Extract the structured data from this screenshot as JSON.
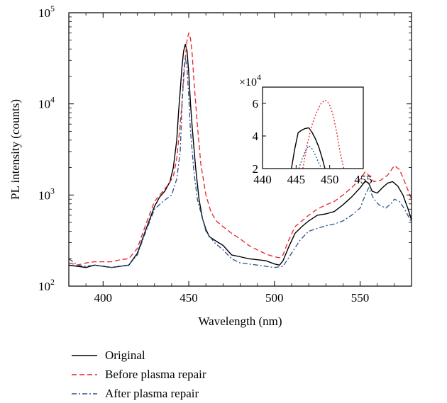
{
  "chart_data": [
    {
      "type": "line",
      "title": "",
      "xlabel": "Wavelength (nm)",
      "ylabel": "PL intensity (counts)",
      "xlim": [
        380,
        580
      ],
      "ylim": [
        100,
        100000
      ],
      "yscale": "log",
      "grid": false,
      "legend_position": "bottom-left, below plot",
      "xticks": [
        400,
        450,
        500,
        550
      ],
      "xtick_labels": [
        "400",
        "450",
        "500",
        "550"
      ],
      "yticks": [
        100,
        1000,
        10000,
        100000
      ],
      "ytick_labels": [
        {
          "base": "10",
          "exp": "2"
        },
        {
          "base": "10",
          "exp": "3"
        },
        {
          "base": "10",
          "exp": "4"
        },
        {
          "base": "10",
          "exp": "5"
        }
      ],
      "series": [
        {
          "name": "Original",
          "color": "#000000",
          "style": "solid",
          "x": [
            380,
            385,
            390,
            395,
            400,
            405,
            410,
            415,
            420,
            425,
            430,
            433,
            436,
            439,
            441,
            443,
            444,
            445,
            446,
            447,
            448,
            449,
            450,
            451,
            452,
            454,
            456,
            458,
            460,
            462,
            465,
            470,
            475,
            480,
            485,
            490,
            495,
            500,
            503,
            505,
            508,
            512,
            516,
            520,
            525,
            530,
            535,
            540,
            545,
            550,
            553,
            555,
            557,
            560,
            563,
            566,
            569,
            572,
            575,
            578,
            580
          ],
          "y": [
            170,
            165,
            160,
            170,
            165,
            160,
            165,
            170,
            230,
            420,
            750,
            950,
            1100,
            1400,
            2000,
            4000,
            8000,
            14000,
            25000,
            38000,
            45000,
            38000,
            22000,
            10000,
            5500,
            2000,
            900,
            550,
            420,
            350,
            320,
            280,
            220,
            210,
            200,
            195,
            190,
            175,
            170,
            190,
            260,
            380,
            450,
            520,
            600,
            620,
            660,
            780,
            950,
            1200,
            1420,
            1350,
            1100,
            1050,
            1200,
            1350,
            1400,
            1250,
            1000,
            700,
            530
          ]
        },
        {
          "name": "Before plasma repair",
          "color": "#e8202a",
          "style": "dashed",
          "x": [
            380,
            385,
            390,
            395,
            400,
            405,
            410,
            415,
            420,
            425,
            430,
            434,
            438,
            441,
            443,
            445,
            446,
            447,
            448,
            449,
            450,
            451,
            452,
            453,
            455,
            457,
            460,
            463,
            466,
            470,
            475,
            480,
            485,
            490,
            495,
            500,
            503,
            505,
            508,
            512,
            516,
            520,
            525,
            530,
            535,
            540,
            545,
            550,
            553,
            555,
            558,
            562,
            566,
            570,
            573,
            576,
            580
          ],
          "y": [
            180,
            170,
            180,
            185,
            185,
            185,
            195,
            200,
            260,
            480,
            850,
            1050,
            1300,
            1600,
            2500,
            6000,
            10000,
            18000,
            32000,
            50000,
            60000,
            52000,
            35000,
            18000,
            6000,
            2200,
            1000,
            650,
            520,
            450,
            380,
            330,
            280,
            250,
            225,
            210,
            205,
            220,
            310,
            450,
            520,
            600,
            700,
            780,
            850,
            1000,
            1200,
            1500,
            1800,
            1650,
            1400,
            1450,
            1650,
            2100,
            1900,
            1400,
            900
          ]
        },
        {
          "name": "After plasma repair",
          "color": "#2a4f8f",
          "style": "dashdot",
          "x": [
            380,
            385,
            390,
            395,
            400,
            405,
            410,
            415,
            420,
            425,
            430,
            435,
            440,
            443,
            445,
            446,
            447,
            448,
            449,
            450,
            451,
            453,
            455,
            458,
            460,
            465,
            470,
            475,
            480,
            485,
            490,
            495,
            500,
            505,
            510,
            515,
            520,
            525,
            530,
            535,
            540,
            545,
            550,
            553,
            555,
            558,
            561,
            565,
            568,
            570,
            573,
            576,
            580
          ],
          "y": [
            200,
            170,
            165,
            170,
            165,
            160,
            165,
            170,
            220,
            400,
            700,
            850,
            1000,
            1500,
            3000,
            9000,
            22000,
            32000,
            25000,
            12000,
            5000,
            1800,
            900,
            550,
            400,
            300,
            250,
            200,
            180,
            175,
            170,
            165,
            160,
            165,
            230,
            320,
            400,
            430,
            460,
            480,
            520,
            600,
            720,
            1000,
            1200,
            900,
            780,
            720,
            800,
            900,
            850,
            700,
            500
          ]
        }
      ]
    },
    {
      "type": "line",
      "role": "inset",
      "title": "",
      "xlabel": "",
      "ylabel": "",
      "xlim": [
        440,
        455
      ],
      "ylim": [
        2,
        7
      ],
      "y_multiplier_label": {
        "base": "×10",
        "exp": "4"
      },
      "xticks": [
        440,
        445,
        450,
        455
      ],
      "xtick_labels": [
        "440",
        "445",
        "450",
        "455"
      ],
      "yticks": [
        2,
        4,
        6
      ],
      "ytick_labels": [
        "2",
        "4",
        "6"
      ],
      "series": [
        {
          "name": "Original",
          "color": "#000000",
          "style": "solid",
          "x": [
            444.3,
            444.8,
            445.3,
            445.8,
            446.3,
            446.9,
            447.4,
            447.9,
            448.4,
            448.9,
            449.3
          ],
          "y": [
            2.0,
            3.2,
            4.2,
            4.35,
            4.45,
            4.5,
            4.2,
            3.8,
            3.3,
            2.6,
            2.0
          ]
        },
        {
          "name": "Before plasma repair",
          "color": "#e8202a",
          "style": "dotted",
          "x": [
            446.0,
            446.6,
            447.3,
            448.0,
            448.7,
            449.3,
            449.9,
            450.5,
            451.1,
            451.6,
            452.1
          ],
          "y": [
            2.0,
            3.4,
            4.6,
            5.4,
            6.0,
            6.2,
            6.0,
            5.3,
            4.1,
            2.9,
            2.0
          ]
        },
        {
          "name": "After plasma repair",
          "color": "#2a4f8f",
          "style": "dotted",
          "x": [
            445.4,
            445.9,
            446.4,
            446.9,
            447.4,
            447.9,
            448.3,
            448.8
          ],
          "y": [
            2.0,
            2.6,
            3.1,
            3.4,
            3.2,
            2.8,
            2.4,
            2.0
          ]
        }
      ]
    }
  ]
}
